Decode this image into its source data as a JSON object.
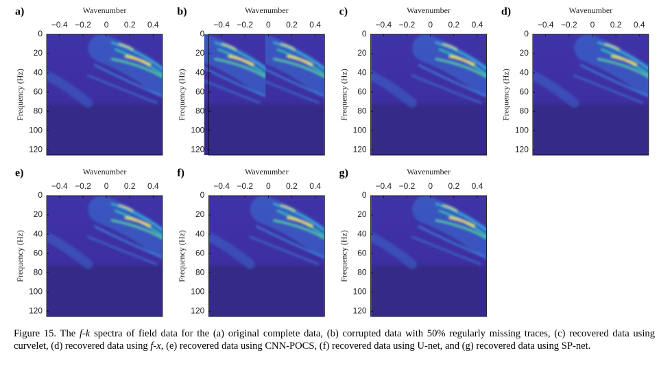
{
  "figure": {
    "panels": [
      {
        "label": "a)",
        "xlabel": "Wavenumber",
        "ylabel": "Frequency (Hz)"
      },
      {
        "label": "b)",
        "xlabel": "Wavenumber",
        "ylabel": "Frequency (Hz)"
      },
      {
        "label": "c)",
        "xlabel": "Wavenumber",
        "ylabel": "Frequency (Hz)"
      },
      {
        "label": "d)",
        "xlabel": "Wavenumber",
        "ylabel": "Frequency (Hz)"
      },
      {
        "label": "e)",
        "xlabel": "Wavenumber",
        "ylabel": "Frequency (Hz)"
      },
      {
        "label": "f)",
        "xlabel": "Wavenumber",
        "ylabel": "Frequency (Hz)"
      },
      {
        "label": "g)",
        "xlabel": "Wavenumber",
        "ylabel": "Frequency (Hz)"
      }
    ],
    "xlim": [
      -0.51,
      0.48
    ],
    "ylim": [
      0,
      125.5
    ],
    "xticks": [
      {
        "value": -0.4,
        "label": "−0.4"
      },
      {
        "value": -0.2,
        "label": "−0.2"
      },
      0,
      0.2,
      0.4
    ],
    "yticks": [
      0,
      20,
      40,
      60,
      80,
      100,
      120
    ]
  },
  "caption": {
    "number": "Figure 15.",
    "part1": "The",
    "fk": "f-k",
    "part2": "spectra of field data for the (a) original complete data, (b) corrupted data with 50% regularly missing traces, (c) recovered data using curvelet, (d) recovered data using",
    "fx": "f-x",
    "part3": ", (e) recovered data using CNN-POCS, (f) recovered data using U-net, and (g) recovered data using SP-net."
  }
}
